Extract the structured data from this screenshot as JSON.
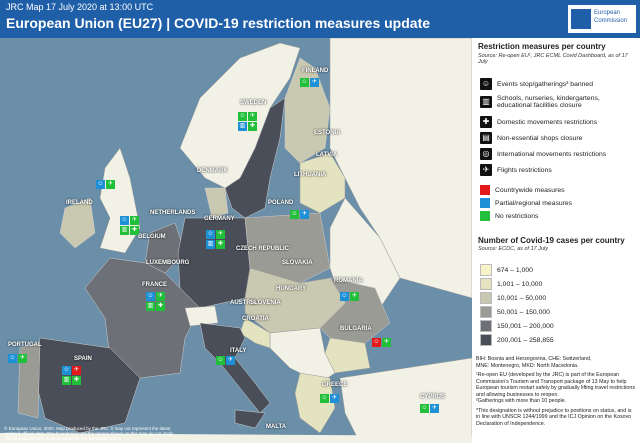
{
  "header": {
    "subtitle": "JRC Map 17 July 2020 at 13:00 UTC",
    "title": "European Union (EU27) | COVID-19 restriction measures update",
    "logo_text_1": "European",
    "logo_text_2": "Commission"
  },
  "legend": {
    "measures_title": "Restriction measures per country",
    "measures_source": "Source: Re-open EU¹, JRC ECML Covid Dashboard, as of 17 July",
    "measures": [
      {
        "label": "Events stop/gatherings² banned",
        "icon": "people-icon"
      },
      {
        "label": "Schools, nurseries, kindergartens, educational facilities closure",
        "icon": "school-icon"
      },
      {
        "label": "Domestic movements restrictions",
        "icon": "walk-icon"
      },
      {
        "label": "Non-essential shops closure",
        "icon": "shop-icon"
      },
      {
        "label": "International movements restrictions",
        "icon": "globe-walk-icon"
      },
      {
        "label": "Flights restrictions",
        "icon": "plane-icon"
      }
    ],
    "status": [
      {
        "label": "Countrywide measures",
        "color": "#e31a1c"
      },
      {
        "label": "Partial/regional measures",
        "color": "#1e90d6"
      },
      {
        "label": "No restrictions",
        "color": "#22c03a"
      }
    ],
    "cases_title": "Number of Covid-19 cases per country",
    "cases_source": "Source: ECDC, as of 17 July",
    "cases": [
      {
        "label": "674 – 1,000",
        "color": "#f7f3c6"
      },
      {
        "label": "1,001 – 10,000",
        "color": "#e4e3c0"
      },
      {
        "label": "10,001 – 50,000",
        "color": "#c9c9b2"
      },
      {
        "label": "50,001 – 150,000",
        "color": "#9a9b95"
      },
      {
        "label": "150,001 – 200,000",
        "color": "#6d7076"
      },
      {
        "label": "200,001 – 258,855",
        "color": "#4a4e58"
      }
    ],
    "notes": [
      "BIH: Bosnia and Herzegovina, CHE: Switzerland,",
      "MNE: Montenegro, MKD: North Macedonia.",
      "¹Re-open EU (developed by the JRC) is part of the European Commission's Tourism and Transport package of 13 May to help European tourism restart safely by gradually lifting travel restrictions and allowing businesses to reopen.",
      "²Gatherings with more than 10 people.",
      "*This designation is without prejudice to positions on status, and is in line with UNSCR 1244/1999 and the ICJ Opinion on the Kosovo Declaration of Independence."
    ]
  },
  "map": {
    "copyright": "© European Union, 2020. Map produced by the JRC. It may not represent the latest updated official data. The boundaries and the names shown on this map do not imply official endorsement or acceptance by the European Union.",
    "countries": [
      {
        "name": "FINLAND"
      },
      {
        "name": "SWEDEN"
      },
      {
        "name": "ESTONIA"
      },
      {
        "name": "LATVIA"
      },
      {
        "name": "LITHUANIA"
      },
      {
        "name": "DENMARK"
      },
      {
        "name": "IRELAND"
      },
      {
        "name": "NETHERLANDS"
      },
      {
        "name": "BELGIUM"
      },
      {
        "name": "LUXEMBOURG"
      },
      {
        "name": "GERMANY"
      },
      {
        "name": "POLAND"
      },
      {
        "name": "CZECH REPUBLIC"
      },
      {
        "name": "SLOVAKIA"
      },
      {
        "name": "AUSTRIA"
      },
      {
        "name": "HUNGARY"
      },
      {
        "name": "ROMANIA"
      },
      {
        "name": "FRANCE"
      },
      {
        "name": "SLOVENIA"
      },
      {
        "name": "CROATIA"
      },
      {
        "name": "ITALY"
      },
      {
        "name": "BULGARIA"
      },
      {
        "name": "PORTUGAL"
      },
      {
        "name": "SPAIN"
      },
      {
        "name": "GREECE"
      },
      {
        "name": "CYPRUS"
      },
      {
        "name": "MALTA"
      }
    ]
  }
}
